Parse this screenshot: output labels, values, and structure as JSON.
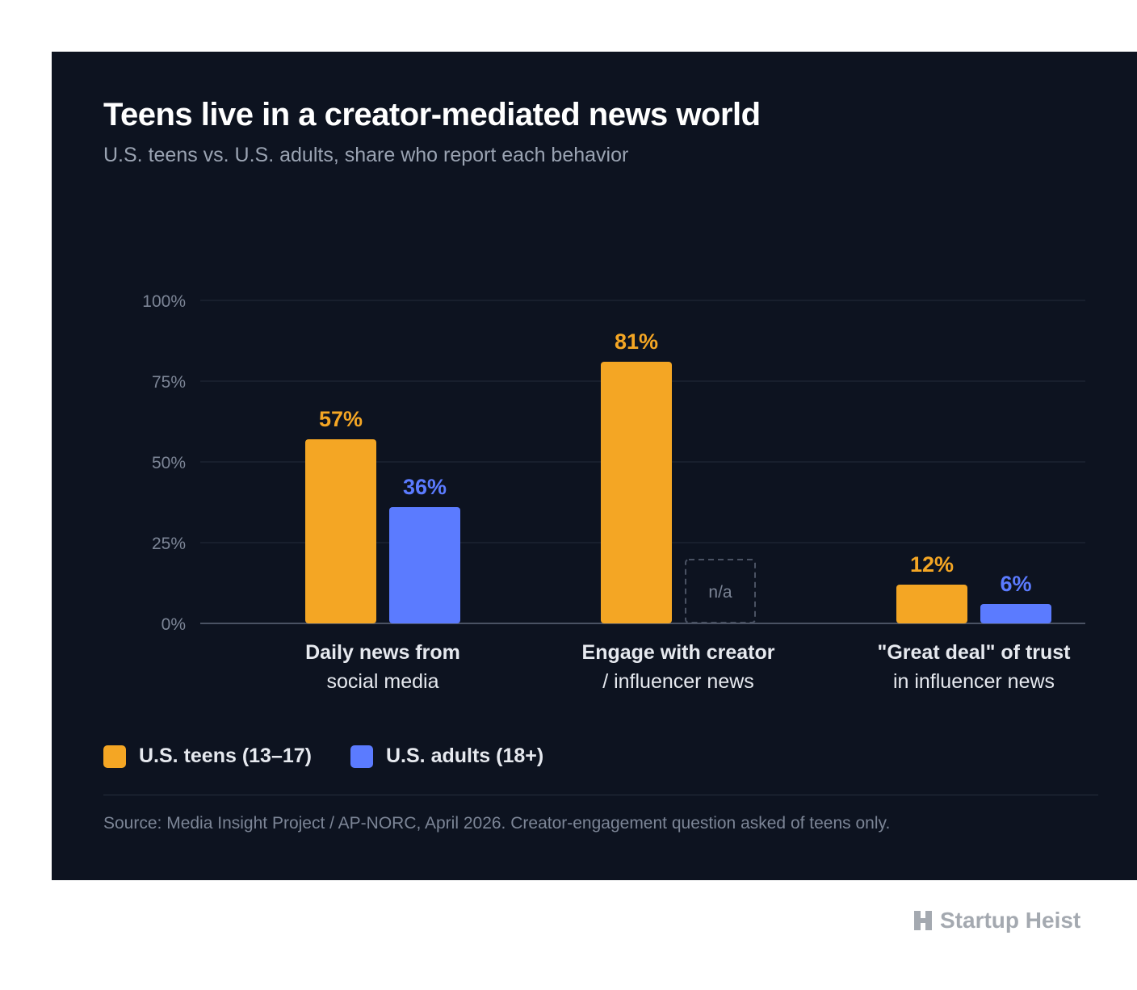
{
  "title": "Teens live in a creator-mediated news world",
  "subtitle": "U.S. teens vs. U.S. adults, share who report each behavior",
  "colors": {
    "teens": "#f4a624",
    "adults": "#5b7bff",
    "background": "#0d1320",
    "na_border": "#4a5263"
  },
  "chart_data": {
    "type": "bar",
    "categories": [
      [
        "Daily news from",
        "social media"
      ],
      [
        "Engage with creator",
        "/ influencer news"
      ],
      [
        "\"Great deal\" of trust",
        "in influencer news"
      ]
    ],
    "series": [
      {
        "name": "U.S. teens (13–17)",
        "values": [
          57,
          81,
          12
        ],
        "labels": [
          "57%",
          "81%",
          "12%"
        ]
      },
      {
        "name": "U.S. adults (18+)",
        "values": [
          36,
          null,
          6
        ],
        "labels": [
          "36%",
          "n/a",
          "6%"
        ]
      }
    ],
    "yticks": [
      {
        "value": 100,
        "label": "100%"
      },
      {
        "value": 75,
        "label": "75%"
      },
      {
        "value": 50,
        "label": "50%"
      },
      {
        "value": 25,
        "label": "25%"
      },
      {
        "value": 0,
        "label": "0%"
      }
    ],
    "ylim": [
      0,
      100
    ],
    "grid": true,
    "legend_position": "bottom-left"
  },
  "legend": [
    {
      "label": "U.S. teens (13–17)"
    },
    {
      "label": "U.S. adults (18+)"
    }
  ],
  "source": "Source: Media Insight Project / AP-NORC, April 2026. Creator-engagement question asked of teens only.",
  "brand": {
    "name": "Startup Heist",
    "icon": "brand-logo-icon"
  }
}
